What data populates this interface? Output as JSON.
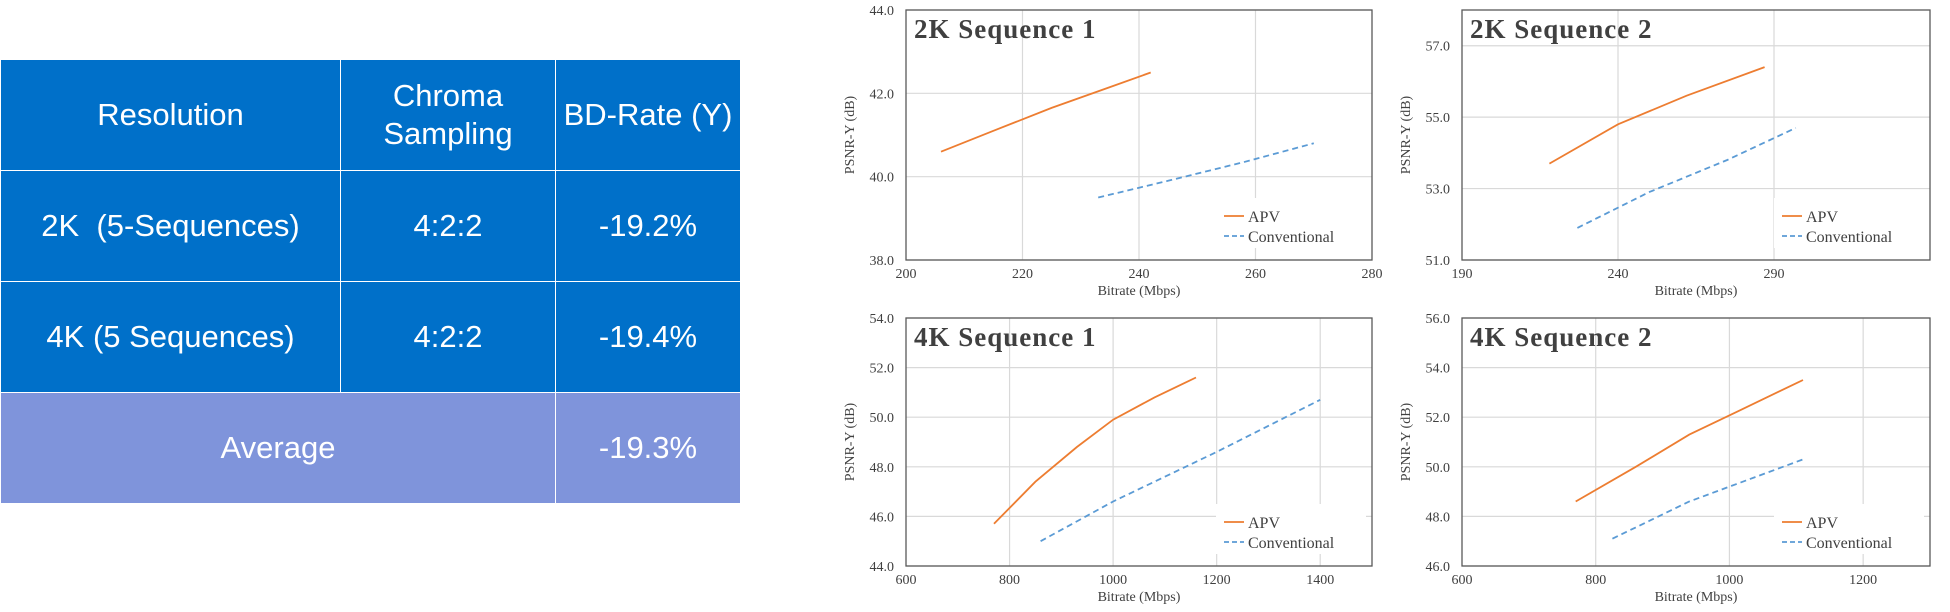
{
  "table": {
    "headers": [
      "Resolution",
      "Chroma Sampling",
      "BD-Rate (Y)"
    ],
    "rows": [
      {
        "resolution": "2K  (5-Sequences)",
        "chroma": "4:2:2",
        "bd_rate": "-19.2%"
      },
      {
        "resolution": "4K (5 Sequences)",
        "chroma": "4:2:2",
        "bd_rate": "-19.4%"
      }
    ],
    "average": {
      "label": "Average",
      "bd_rate": "-19.3%"
    }
  },
  "colors": {
    "table_header": "#0070C9",
    "table_average": "#7F94DB",
    "apv": "#ED7D31",
    "conventional": "#5B9BD5"
  },
  "chart_data": [
    {
      "type": "line",
      "title": "2K Sequence 1",
      "xlabel": "Bitrate (Mbps)",
      "ylabel": "PSNR-Y (dB)",
      "xlim": [
        200,
        280
      ],
      "ylim": [
        38.0,
        44.0
      ],
      "xticks": [
        200,
        220,
        240,
        260,
        280
      ],
      "yticks": [
        "38.0",
        "40.0",
        "42.0",
        "44.0"
      ],
      "grid": true,
      "legend": "bottom-right",
      "series": [
        {
          "name": "APV",
          "style": "solid",
          "x": [
            206,
            215,
            225,
            235,
            242
          ],
          "y": [
            40.6,
            41.1,
            41.65,
            42.15,
            42.5
          ]
        },
        {
          "name": "Conventional",
          "style": "dashed",
          "x": [
            233,
            245,
            258,
            270
          ],
          "y": [
            39.5,
            39.9,
            40.35,
            40.8
          ]
        }
      ]
    },
    {
      "type": "line",
      "title": "2K Sequence 2",
      "xlabel": "Bitrate (Mbps)",
      "ylabel": "PSNR-Y (dB)",
      "xlim": [
        190,
        340
      ],
      "ylim": [
        51.0,
        58.0
      ],
      "xticks": [
        190,
        240,
        290
      ],
      "yticks": [
        "51.0",
        "53.0",
        "55.0",
        "57.0"
      ],
      "grid": true,
      "legend": "bottom-right",
      "series": [
        {
          "name": "APV",
          "style": "solid",
          "x": [
            218,
            240,
            262,
            287
          ],
          "y": [
            53.7,
            54.8,
            55.6,
            56.4
          ]
        },
        {
          "name": "Conventional",
          "style": "dashed",
          "x": [
            227,
            250,
            275,
            297
          ],
          "y": [
            51.9,
            52.9,
            53.8,
            54.7
          ]
        }
      ]
    },
    {
      "type": "line",
      "title": "4K Sequence 1",
      "xlabel": "Bitrate (Mbps)",
      "ylabel": "PSNR-Y (dB)",
      "xlim": [
        600,
        1500
      ],
      "ylim": [
        44.0,
        54.0
      ],
      "xticks": [
        600,
        800,
        1000,
        1200,
        1400
      ],
      "yticks": [
        "44.0",
        "46.0",
        "48.0",
        "50.0",
        "52.0",
        "54.0"
      ],
      "grid": true,
      "legend": "bottom-right",
      "series": [
        {
          "name": "APV",
          "style": "solid",
          "x": [
            770,
            850,
            930,
            1000,
            1080,
            1160
          ],
          "y": [
            45.7,
            47.4,
            48.8,
            49.9,
            50.8,
            51.6
          ]
        },
        {
          "name": "Conventional",
          "style": "dashed",
          "x": [
            860,
            1000,
            1200,
            1400
          ],
          "y": [
            45.0,
            46.6,
            48.6,
            50.7
          ]
        }
      ]
    },
    {
      "type": "line",
      "title": "4K Sequence 2",
      "xlabel": "Bitrate (Mbps)",
      "ylabel": "PSNR-Y (dB)",
      "xlim": [
        600,
        1300
      ],
      "ylim": [
        46.0,
        56.0
      ],
      "xticks": [
        600,
        800,
        1000,
        1200
      ],
      "yticks": [
        "46.0",
        "48.0",
        "50.0",
        "52.0",
        "54.0",
        "56.0"
      ],
      "grid": true,
      "legend": "bottom-right",
      "series": [
        {
          "name": "APV",
          "style": "solid",
          "x": [
            770,
            860,
            940,
            1010,
            1110
          ],
          "y": [
            48.6,
            50.0,
            51.3,
            52.2,
            53.5
          ]
        },
        {
          "name": "Conventional",
          "style": "dashed",
          "x": [
            825,
            940,
            1030,
            1110
          ],
          "y": [
            47.1,
            48.6,
            49.5,
            50.3
          ]
        }
      ]
    }
  ]
}
